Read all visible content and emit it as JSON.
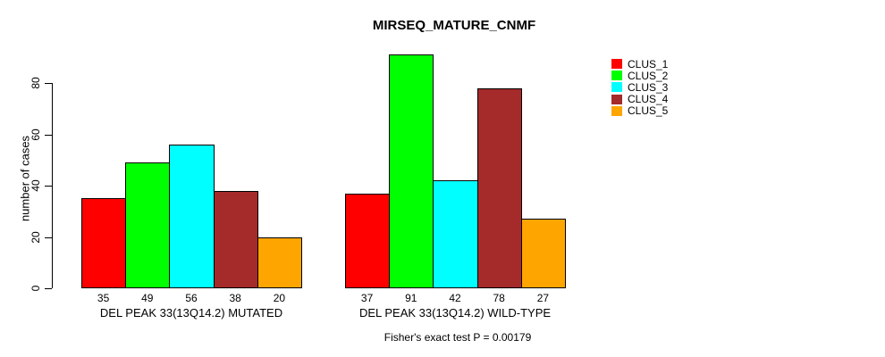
{
  "chart_data": {
    "type": "bar",
    "title": "MIRSEQ_MATURE_CNMF",
    "xlabel": "",
    "ylabel": "number of cases",
    "categories": [
      "DEL PEAK 33(13Q14.2) MUTATED",
      "DEL PEAK 33(13Q14.2) WILD-TYPE"
    ],
    "series": [
      {
        "name": "CLUS_1",
        "color": "#FF0000",
        "values": [
          35,
          37
        ]
      },
      {
        "name": "CLUS_2",
        "color": "#00FF00",
        "values": [
          49,
          91
        ]
      },
      {
        "name": "CLUS_3",
        "color": "#00FFFF",
        "values": [
          56,
          42
        ]
      },
      {
        "name": "CLUS_4",
        "color": "#A52A2A",
        "values": [
          38,
          78
        ]
      },
      {
        "name": "CLUS_5",
        "color": "#FFA500",
        "values": [
          20,
          27
        ]
      }
    ],
    "y_ticks": [
      0,
      20,
      40,
      60,
      80
    ],
    "ylim": [
      0,
      92
    ],
    "grid": false,
    "bar_value_labels": true,
    "legend_position": "top-right-outside",
    "annotation": "Fisher's exact test P = 0.00179"
  }
}
